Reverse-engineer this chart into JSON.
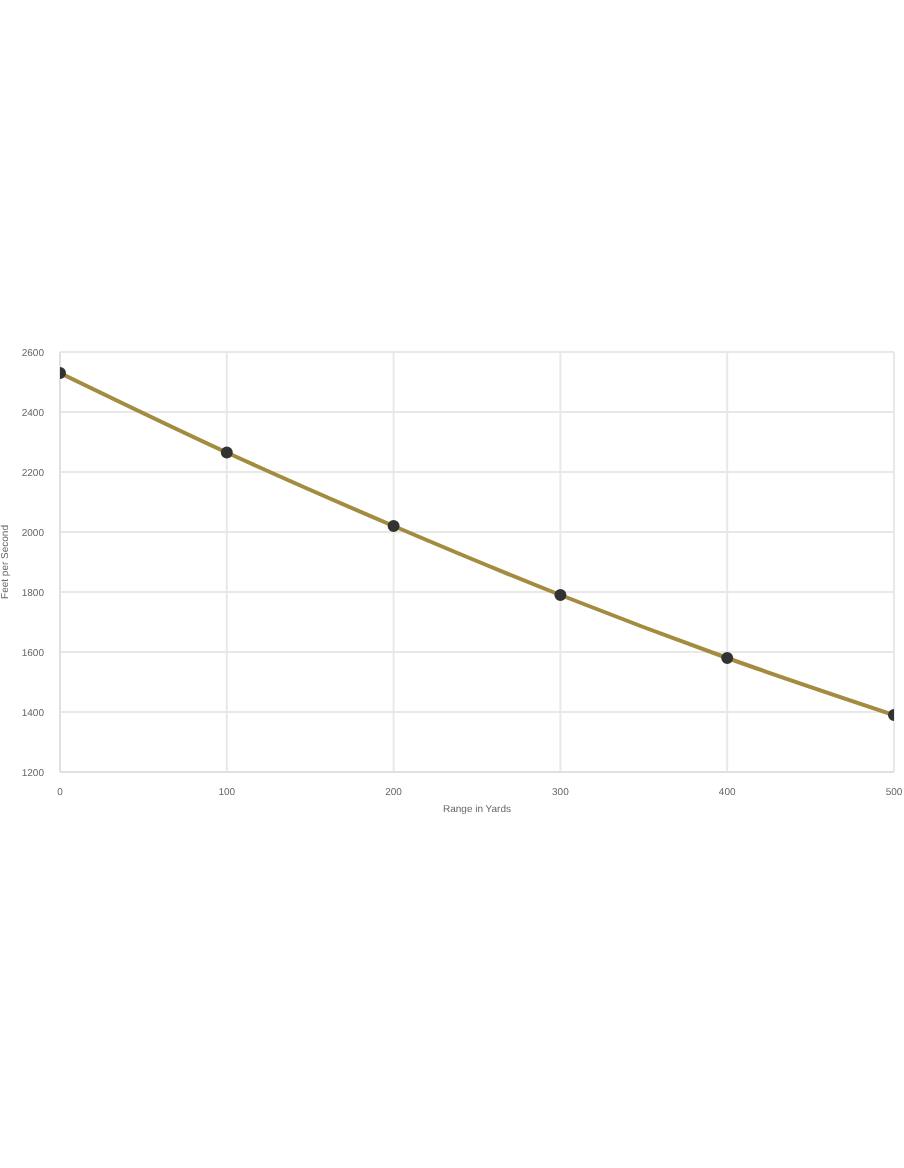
{
  "chart_data": {
    "type": "line",
    "xlabel": "Range in Yards",
    "ylabel": "Feet per Second",
    "x": [
      0,
      100,
      200,
      300,
      400,
      500
    ],
    "series": [
      {
        "color": "#a38b3f",
        "values": [
          2530,
          2265,
          2020,
          1790,
          1580,
          1390
        ]
      }
    ],
    "xlim": [
      0,
      500
    ],
    "xticks": [
      0,
      100,
      200,
      300,
      400,
      500
    ],
    "ylim": [
      1200,
      2600
    ],
    "yticks": [
      1200,
      1400,
      1600,
      1800,
      2000,
      2200,
      2400,
      2600
    ],
    "grid": true,
    "legend": false,
    "marker": "circle",
    "line_style": "solid"
  }
}
